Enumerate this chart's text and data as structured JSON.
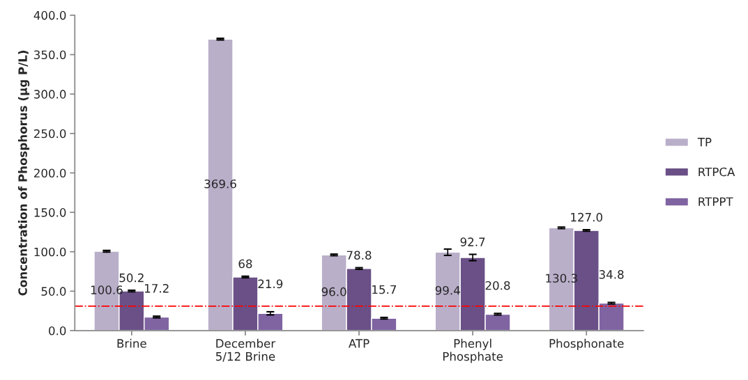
{
  "chart_data": {
    "type": "bar",
    "ylabel": "Concentration of Phosphorus (µg P/L)",
    "categories": [
      "Brine",
      "December\n5/12 Brine",
      "ATP",
      "Phenyl\nPhosphate",
      "Phosphonate"
    ],
    "series": [
      {
        "name": "TP",
        "color": "#b9afc9",
        "values": [
          100.6,
          369.6,
          96.0,
          99.4,
          130.3
        ],
        "errors": [
          1,
          1,
          1,
          4,
          1
        ],
        "value_labels": [
          "100.6",
          "369.6",
          "96.0",
          "99.4",
          "130.3"
        ]
      },
      {
        "name": "RTPCA",
        "color": "#6a5087",
        "values": [
          50.2,
          68,
          78.8,
          92.7,
          127.0
        ],
        "errors": [
          1,
          1,
          1,
          4,
          1
        ],
        "value_labels": [
          "50.2",
          "68",
          "78.8",
          "92.7",
          "127.0"
        ]
      },
      {
        "name": "RTPPT",
        "color": "#8064a2",
        "values": [
          17.2,
          21.9,
          15.7,
          20.8,
          34.8
        ],
        "errors": [
          1,
          2,
          1,
          1,
          1
        ],
        "value_labels": [
          "17.2",
          "21.9",
          "15.7",
          "20.8",
          "34.8"
        ]
      }
    ],
    "ylim": [
      0,
      400
    ],
    "yticks": [
      {
        "value": 0,
        "label": "0.0"
      },
      {
        "value": 50,
        "label": "50.0"
      },
      {
        "value": 100,
        "label": "100.0"
      },
      {
        "value": 150,
        "label": "150.0"
      },
      {
        "value": 200,
        "label": "200.0"
      },
      {
        "value": 250,
        "label": "250.0"
      },
      {
        "value": 300,
        "label": "300.0"
      },
      {
        "value": 350,
        "label": "350.0"
      },
      {
        "value": 400,
        "label": "400.0"
      }
    ],
    "ref_lines": [
      {
        "axis": "y",
        "value": 31,
        "color": "#ff0000",
        "line_style": "dashdot"
      }
    ],
    "grid": false,
    "legend": "right"
  }
}
